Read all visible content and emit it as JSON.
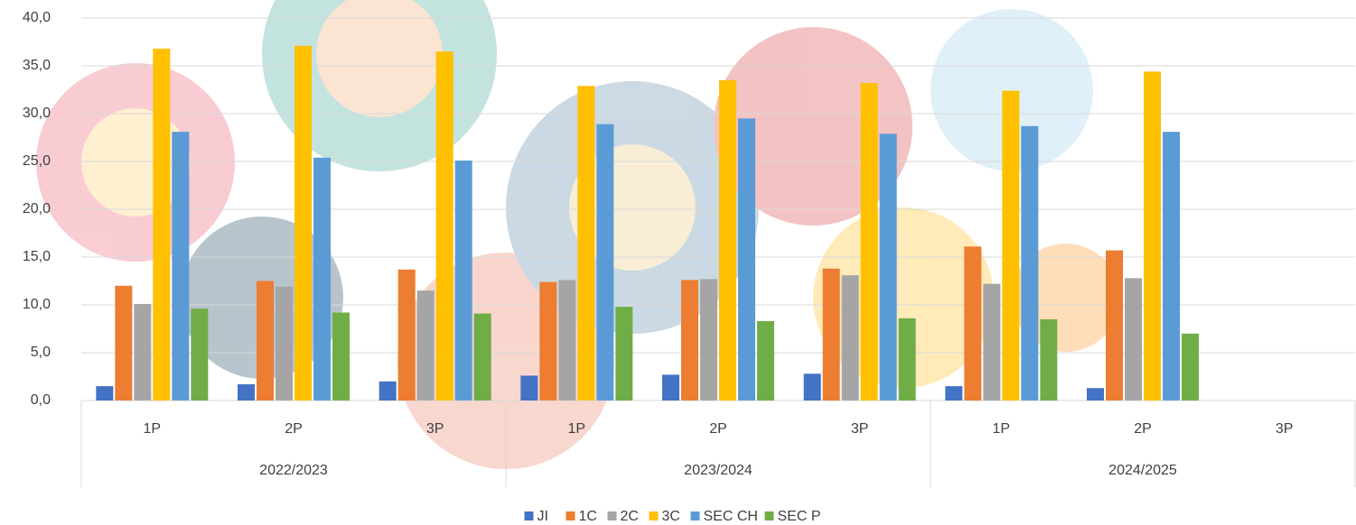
{
  "chart_data": {
    "type": "bar",
    "categories": [
      "1P",
      "2P",
      "3P",
      "1P",
      "2P",
      "3P",
      "1P",
      "2P",
      "3P"
    ],
    "category_groups": [
      "2022/2023",
      "2023/2024",
      "2024/2025"
    ],
    "series": [
      {
        "name": "JI",
        "color": "#4472c4",
        "values": [
          1.5,
          1.7,
          2.0,
          2.6,
          2.7,
          2.8,
          1.5,
          1.3,
          null
        ]
      },
      {
        "name": "1C",
        "color": "#ed7d31",
        "values": [
          12.0,
          12.5,
          13.7,
          12.4,
          12.6,
          13.8,
          16.1,
          15.7,
          null
        ]
      },
      {
        "name": "2C",
        "color": "#a5a5a5",
        "values": [
          10.1,
          11.9,
          11.5,
          12.6,
          12.7,
          13.1,
          12.2,
          12.8,
          null
        ]
      },
      {
        "name": "3C",
        "color": "#ffc000",
        "values": [
          36.8,
          37.1,
          36.5,
          32.9,
          33.5,
          33.2,
          32.4,
          34.4,
          null
        ]
      },
      {
        "name": "SEC CH",
        "color": "#5b9bd5",
        "values": [
          28.1,
          25.4,
          25.1,
          28.9,
          29.5,
          27.9,
          28.7,
          28.1,
          null
        ]
      },
      {
        "name": "SEC P",
        "color": "#70ad47",
        "values": [
          9.6,
          9.2,
          9.1,
          9.8,
          8.3,
          8.6,
          8.5,
          7.0,
          null
        ]
      }
    ],
    "ylim": [
      0,
      40
    ],
    "yticks": [
      {
        "value": 0,
        "label": "0,0"
      },
      {
        "value": 5,
        "label": "5,0"
      },
      {
        "value": 10,
        "label": "10,0"
      },
      {
        "value": 15,
        "label": "15,0"
      },
      {
        "value": 20,
        "label": "20,0"
      },
      {
        "value": 25,
        "label": "25,0"
      },
      {
        "value": 30,
        "label": "30,0"
      },
      {
        "value": 35,
        "label": "35,0"
      },
      {
        "value": 40,
        "label": "40,0"
      }
    ],
    "grid": true,
    "legend": "bottom"
  }
}
